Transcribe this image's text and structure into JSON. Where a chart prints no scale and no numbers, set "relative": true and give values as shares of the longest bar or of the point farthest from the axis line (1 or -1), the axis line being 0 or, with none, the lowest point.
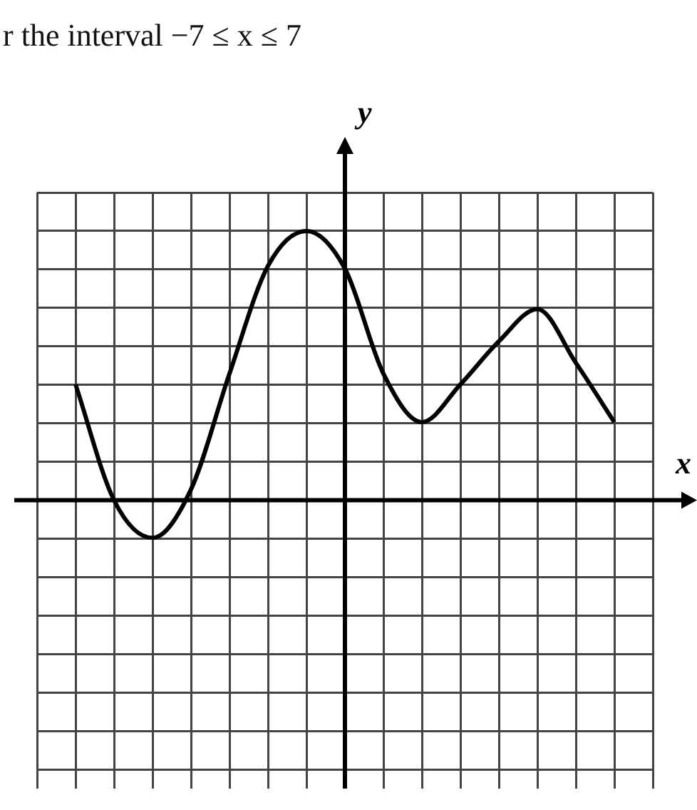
{
  "chart_data": {
    "type": "line",
    "title": "r the interval −7 ≤ x ≤ 7",
    "xlabel": "x",
    "ylabel": "y",
    "relative": true,
    "grid": true,
    "tick_labels": false,
    "legend": false,
    "marker": "none",
    "line_style": "solid",
    "categories": [
      null,
      null,
      null,
      null,
      null,
      null,
      null,
      null,
      null,
      null,
      null,
      null,
      null,
      null,
      null
    ],
    "series": [
      {
        "color": "#000000",
        "values": [
          0.43,
          0,
          -0.14,
          0.04,
          0.47,
          0.87,
          1,
          0.86,
          0.47,
          0.29,
          0.43,
          0.59,
          0.71,
          0.51,
          0.29
        ]
      }
    ]
  }
}
